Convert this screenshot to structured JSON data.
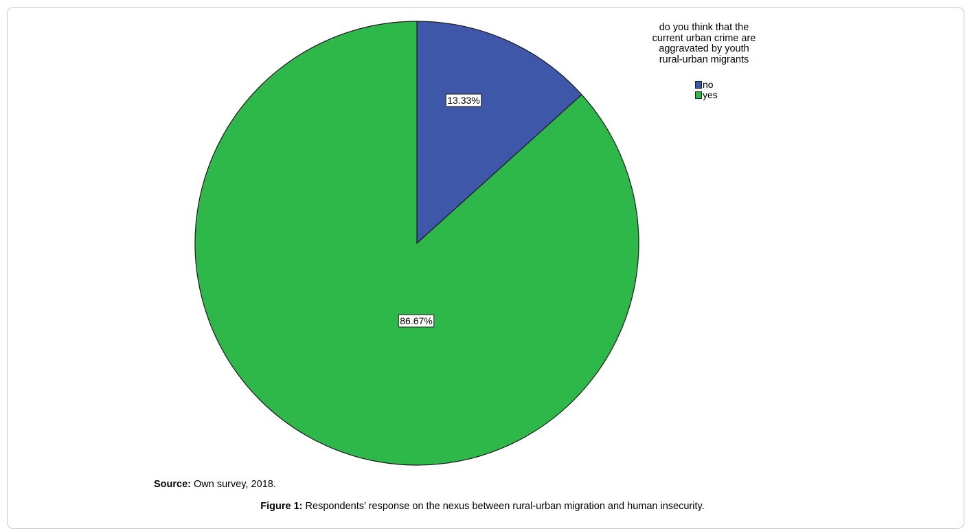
{
  "chart_data": {
    "type": "pie",
    "legend_title": "do you think that the\ncurrent urban crime are\naggravated by youth\nrural-urban migrants",
    "legend_position": "top-right",
    "slices": [
      {
        "label": "no",
        "value": 13.33,
        "display": "13.33%",
        "color": "#3f57a8"
      },
      {
        "label": "yes",
        "value": 86.67,
        "display": "86.67%",
        "color": "#2fb84a"
      }
    ]
  },
  "source": {
    "label": "Source:",
    "text": " Own survey, 2018."
  },
  "caption": {
    "label": "Figure 1:",
    "text": " Respondents’ response on the nexus between rural-urban migration and human insecurity."
  }
}
